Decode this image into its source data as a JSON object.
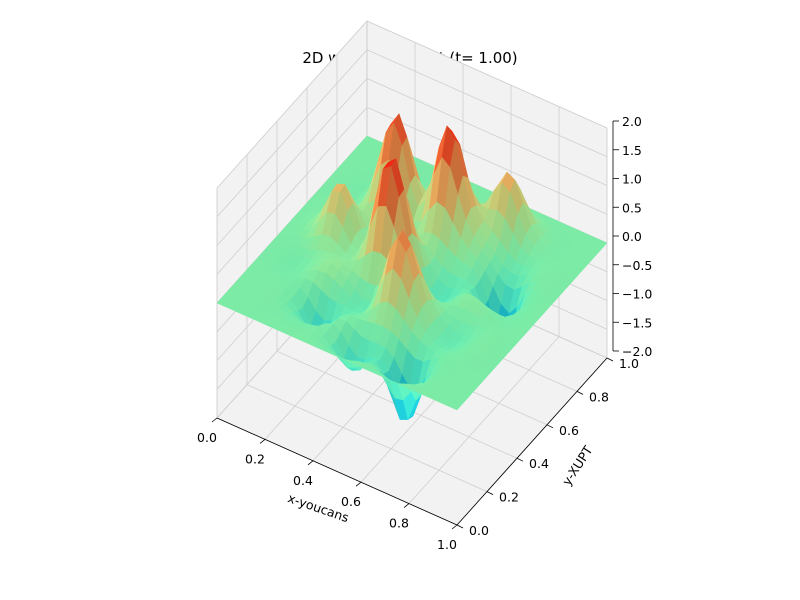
{
  "chart_data": {
    "type": "surface",
    "title": "2D wave equationt (t= 1.00)",
    "xlabel": "x-youcans",
    "ylabel": "y-XUPT",
    "zlabel": "",
    "xlim": [
      0.0,
      1.0
    ],
    "ylim": [
      0.0,
      1.0
    ],
    "zlim": [
      -2.0,
      2.0
    ],
    "x_ticks": [
      "0.0",
      "0.2",
      "0.4",
      "0.6",
      "0.8",
      "1.0"
    ],
    "y_ticks": [
      "0.0",
      "0.2",
      "0.4",
      "0.6",
      "0.8",
      "1.0"
    ],
    "z_ticks": [
      "−2.0",
      "−1.5",
      "−1.0",
      "−0.5",
      "0.0",
      "0.5",
      "1.0",
      "1.5",
      "2.0"
    ],
    "colormap": "rainbow",
    "grid": true,
    "peaks": [
      {
        "x": 0.5,
        "y": 0.74,
        "z": 2.0
      },
      {
        "x": 0.42,
        "y": 0.48,
        "z": 1.7
      },
      {
        "x": 0.3,
        "y": 0.72,
        "z": 1.6
      },
      {
        "x": 0.68,
        "y": 0.88,
        "z": 1.4
      },
      {
        "x": 0.56,
        "y": 0.32,
        "z": 1.2
      },
      {
        "x": 0.2,
        "y": 0.52,
        "z": 1.0
      }
    ],
    "troughs": [
      {
        "x": 0.72,
        "y": 0.1,
        "z": -2.0
      },
      {
        "x": 0.8,
        "y": 0.6,
        "z": -1.3
      },
      {
        "x": 0.5,
        "y": 0.08,
        "z": -0.9
      },
      {
        "x": 0.3,
        "y": 0.2,
        "z": -0.6
      }
    ]
  }
}
